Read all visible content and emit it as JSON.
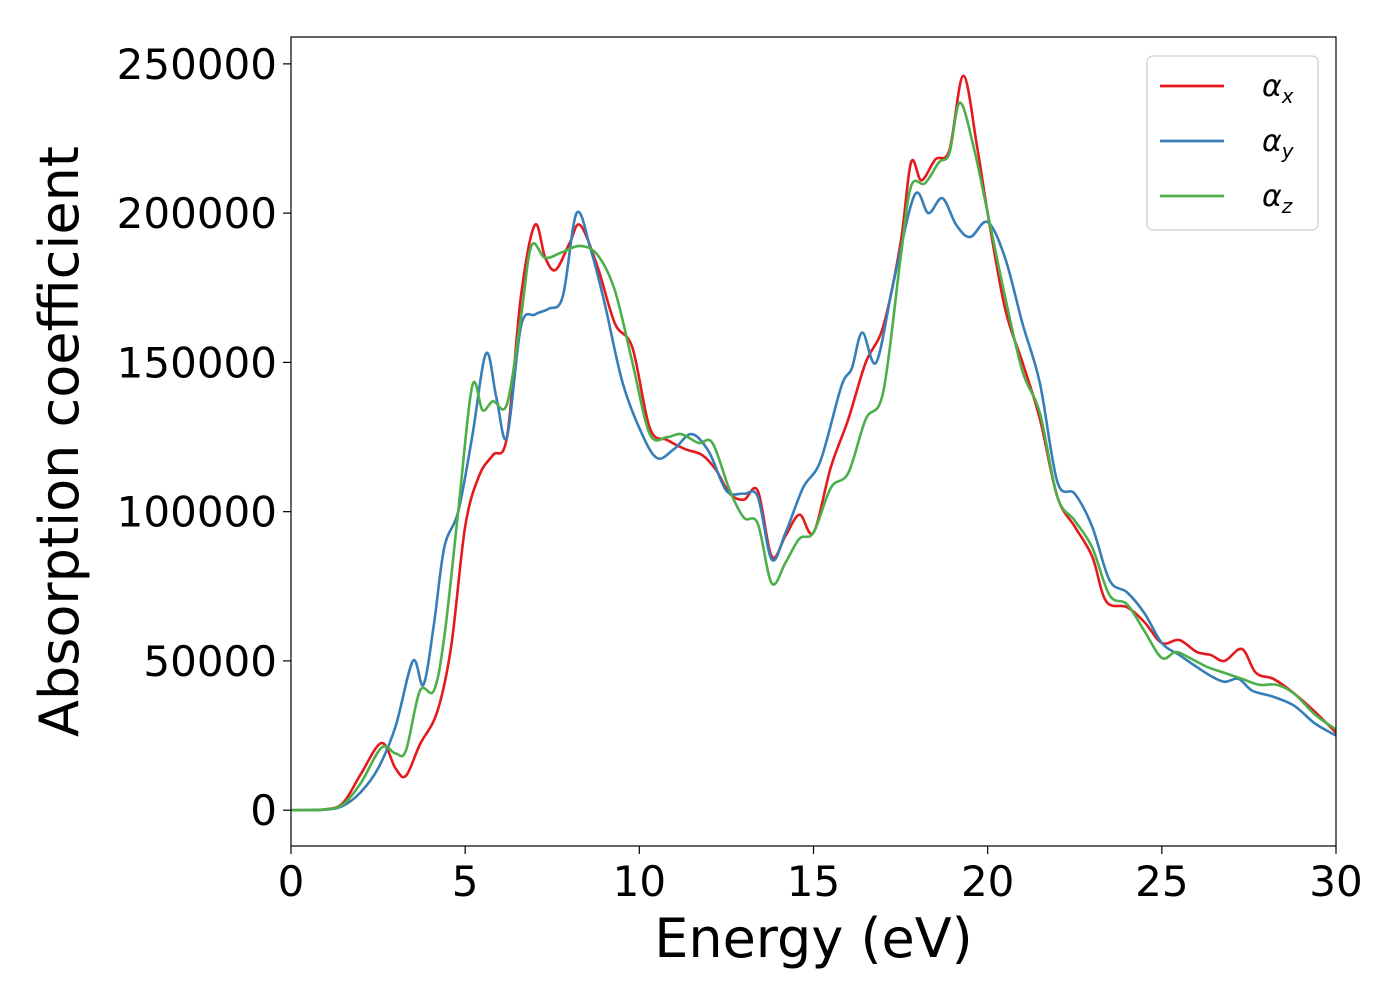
{
  "chart_data": {
    "type": "line",
    "title": "",
    "xlabel": "Energy (eV)",
    "ylabel": "Absorption coefficient",
    "xlim": [
      0,
      30
    ],
    "ylim": [
      -12000,
      259000
    ],
    "xticks": [
      0,
      5,
      10,
      15,
      20,
      25,
      30
    ],
    "yticks": [
      0,
      50000,
      100000,
      150000,
      200000,
      250000
    ],
    "grid": false,
    "legend_position": "top-right",
    "series": [
      {
        "name": "α_x",
        "name_base": "α",
        "name_sub": "x",
        "color": "#e41a1c",
        "points": [
          [
            0,
            0
          ],
          [
            1.0,
            300
          ],
          [
            1.5,
            2500
          ],
          [
            2.0,
            12000
          ],
          [
            2.6,
            22500
          ],
          [
            3.0,
            14000
          ],
          [
            3.3,
            11500
          ],
          [
            3.7,
            22000
          ],
          [
            4.2,
            33000
          ],
          [
            4.6,
            55000
          ],
          [
            5.0,
            95000
          ],
          [
            5.4,
            112000
          ],
          [
            5.8,
            119000
          ],
          [
            6.2,
            125000
          ],
          [
            6.6,
            172000
          ],
          [
            7.0,
            196000
          ],
          [
            7.3,
            185000
          ],
          [
            7.6,
            181000
          ],
          [
            8.0,
            190000
          ],
          [
            8.3,
            196000
          ],
          [
            8.8,
            182000
          ],
          [
            9.3,
            163000
          ],
          [
            9.8,
            155000
          ],
          [
            10.3,
            128000
          ],
          [
            10.8,
            124000
          ],
          [
            11.3,
            121000
          ],
          [
            11.8,
            119000
          ],
          [
            12.2,
            114000
          ],
          [
            12.6,
            106000
          ],
          [
            13.0,
            104000
          ],
          [
            13.4,
            107000
          ],
          [
            13.8,
            85000
          ],
          [
            14.2,
            92000
          ],
          [
            14.6,
            99000
          ],
          [
            15.0,
            93000
          ],
          [
            15.5,
            115000
          ],
          [
            16.0,
            131000
          ],
          [
            16.5,
            150000
          ],
          [
            17.0,
            162000
          ],
          [
            17.5,
            190000
          ],
          [
            17.8,
            217000
          ],
          [
            18.1,
            211000
          ],
          [
            18.5,
            218000
          ],
          [
            18.9,
            221000
          ],
          [
            19.3,
            246000
          ],
          [
            19.7,
            222000
          ],
          [
            20.0,
            200000
          ],
          [
            20.5,
            168000
          ],
          [
            21.0,
            150000
          ],
          [
            21.5,
            131000
          ],
          [
            22.0,
            105000
          ],
          [
            22.5,
            95000
          ],
          [
            23.0,
            85000
          ],
          [
            23.4,
            70000
          ],
          [
            24.0,
            68000
          ],
          [
            24.5,
            63000
          ],
          [
            25.0,
            56000
          ],
          [
            25.5,
            57000
          ],
          [
            26.0,
            53000
          ],
          [
            26.4,
            52000
          ],
          [
            26.8,
            50000
          ],
          [
            27.3,
            54000
          ],
          [
            27.7,
            46000
          ],
          [
            28.2,
            44000
          ],
          [
            28.7,
            40000
          ],
          [
            29.3,
            34000
          ],
          [
            30,
            26000
          ]
        ]
      },
      {
        "name": "α_y",
        "name_base": "α",
        "name_sub": "y",
        "color": "#377eb8",
        "points": [
          [
            0,
            0
          ],
          [
            1.0,
            200
          ],
          [
            1.5,
            1500
          ],
          [
            2.0,
            6000
          ],
          [
            2.5,
            14000
          ],
          [
            3.0,
            28000
          ],
          [
            3.5,
            50000
          ],
          [
            3.8,
            42000
          ],
          [
            4.1,
            62000
          ],
          [
            4.4,
            88000
          ],
          [
            4.8,
            100000
          ],
          [
            5.2,
            125000
          ],
          [
            5.6,
            153000
          ],
          [
            5.9,
            138000
          ],
          [
            6.2,
            125000
          ],
          [
            6.6,
            162000
          ],
          [
            7.0,
            166000
          ],
          [
            7.4,
            168000
          ],
          [
            7.8,
            172000
          ],
          [
            8.2,
            200000
          ],
          [
            8.6,
            188000
          ],
          [
            9.0,
            170000
          ],
          [
            9.5,
            144000
          ],
          [
            10.0,
            128000
          ],
          [
            10.5,
            118000
          ],
          [
            11.0,
            121000
          ],
          [
            11.5,
            126000
          ],
          [
            12.0,
            120000
          ],
          [
            12.5,
            107000
          ],
          [
            13.0,
            106000
          ],
          [
            13.4,
            105000
          ],
          [
            13.8,
            84000
          ],
          [
            14.2,
            93000
          ],
          [
            14.7,
            108000
          ],
          [
            15.2,
            117000
          ],
          [
            15.8,
            142000
          ],
          [
            16.1,
            148000
          ],
          [
            16.4,
            160000
          ],
          [
            16.8,
            150000
          ],
          [
            17.3,
            177000
          ],
          [
            17.9,
            206000
          ],
          [
            18.3,
            200000
          ],
          [
            18.7,
            205000
          ],
          [
            19.1,
            196000
          ],
          [
            19.5,
            192000
          ],
          [
            20.0,
            197000
          ],
          [
            20.5,
            185000
          ],
          [
            21.0,
            163000
          ],
          [
            21.5,
            143000
          ],
          [
            22.0,
            110000
          ],
          [
            22.5,
            106000
          ],
          [
            23.0,
            95000
          ],
          [
            23.5,
            77000
          ],
          [
            24.0,
            73000
          ],
          [
            24.5,
            66000
          ],
          [
            25.0,
            56000
          ],
          [
            25.5,
            52000
          ],
          [
            26.0,
            48000
          ],
          [
            26.4,
            45000
          ],
          [
            26.8,
            43000
          ],
          [
            27.2,
            44000
          ],
          [
            27.6,
            40000
          ],
          [
            28.2,
            38000
          ],
          [
            28.8,
            35000
          ],
          [
            29.4,
            29000
          ],
          [
            30,
            25000
          ]
        ]
      },
      {
        "name": "α_z",
        "name_base": "α",
        "name_sub": "z",
        "color": "#4daf4a",
        "points": [
          [
            0,
            0
          ],
          [
            1.0,
            250
          ],
          [
            1.5,
            2000
          ],
          [
            2.0,
            9000
          ],
          [
            2.6,
            21000
          ],
          [
            3.0,
            19000
          ],
          [
            3.3,
            20000
          ],
          [
            3.7,
            40000
          ],
          [
            4.1,
            40000
          ],
          [
            4.4,
            58000
          ],
          [
            4.8,
            100000
          ],
          [
            5.2,
            142000
          ],
          [
            5.5,
            134000
          ],
          [
            5.8,
            137000
          ],
          [
            6.2,
            136000
          ],
          [
            6.6,
            165000
          ],
          [
            6.9,
            189000
          ],
          [
            7.3,
            185000
          ],
          [
            7.8,
            187000
          ],
          [
            8.3,
            189000
          ],
          [
            8.8,
            186000
          ],
          [
            9.3,
            174000
          ],
          [
            9.8,
            150000
          ],
          [
            10.3,
            126000
          ],
          [
            10.8,
            125000
          ],
          [
            11.2,
            126000
          ],
          [
            11.7,
            123000
          ],
          [
            12.1,
            123000
          ],
          [
            12.6,
            107000
          ],
          [
            13.0,
            98000
          ],
          [
            13.4,
            96000
          ],
          [
            13.8,
            76000
          ],
          [
            14.2,
            83000
          ],
          [
            14.6,
            91000
          ],
          [
            15.0,
            93000
          ],
          [
            15.5,
            108000
          ],
          [
            16.0,
            113000
          ],
          [
            16.5,
            131000
          ],
          [
            17.0,
            140000
          ],
          [
            17.5,
            185000
          ],
          [
            17.8,
            209000
          ],
          [
            18.2,
            210000
          ],
          [
            18.6,
            217000
          ],
          [
            18.9,
            220000
          ],
          [
            19.2,
            237000
          ],
          [
            19.6,
            222000
          ],
          [
            20.0,
            200000
          ],
          [
            20.5,
            172000
          ],
          [
            21.0,
            147000
          ],
          [
            21.5,
            133000
          ],
          [
            22.0,
            105000
          ],
          [
            22.5,
            97000
          ],
          [
            23.0,
            88000
          ],
          [
            23.5,
            72000
          ],
          [
            24.0,
            69000
          ],
          [
            24.5,
            60000
          ],
          [
            25.0,
            51000
          ],
          [
            25.4,
            53000
          ],
          [
            25.8,
            51000
          ],
          [
            26.3,
            48000
          ],
          [
            26.8,
            46000
          ],
          [
            27.3,
            44000
          ],
          [
            27.8,
            42000
          ],
          [
            28.3,
            42000
          ],
          [
            28.8,
            39000
          ],
          [
            29.4,
            32000
          ],
          [
            30,
            27000
          ]
        ]
      }
    ]
  }
}
